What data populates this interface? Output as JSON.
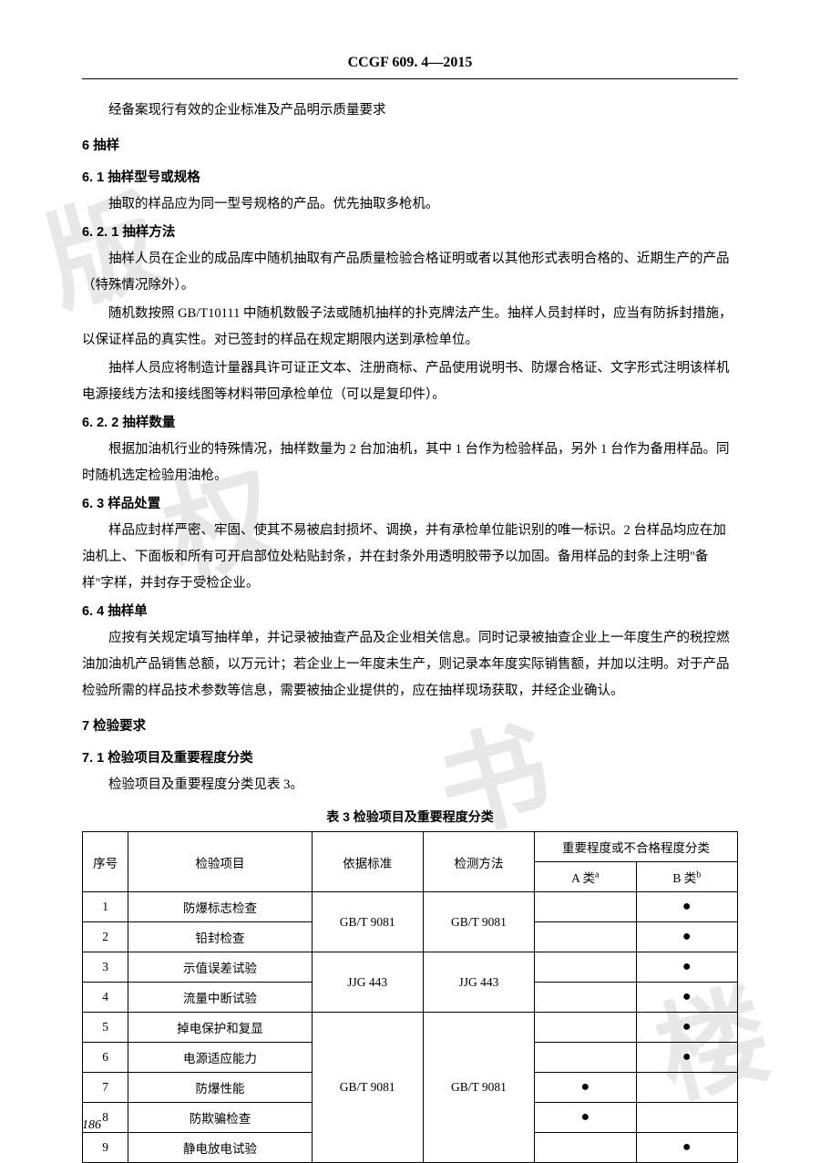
{
  "header": "CCGF 609. 4—2015",
  "intro_line": "经备案现行有效的企业标准及产品明示质量要求",
  "sec6": {
    "title": "6  抽样",
    "s61": {
      "title": "6. 1  抽样型号或规格",
      "p1": "抽取的样品应为同一型号规格的产品。优先抽取多枪机。"
    },
    "s621": {
      "title": "6. 2. 1  抽样方法",
      "p1": "抽样人员在企业的成品库中随机抽取有产品质量检验合格证明或者以其他形式表明合格的、近期生产的产品（特殊情况除外）。",
      "p2": "随机数按照 GB/T10111 中随机数骰子法或随机抽样的扑克牌法产生。抽样人员封样时，应当有防拆封措施，以保证样品的真实性。对已签封的样品在规定期限内送到承检单位。",
      "p3": "抽样人员应将制造计量器具许可证正文本、注册商标、产品使用说明书、防爆合格证、文字形式注明该样机电源接线方法和接线图等材料带回承检单位（可以是复印件）。"
    },
    "s622": {
      "title": "6. 2. 2  抽样数量",
      "p1": "根据加油机行业的特殊情况，抽样数量为 2 台加油机，其中 1 台作为检验样品，另外 1 台作为备用样品。同时随机选定检验用油枪。"
    },
    "s63": {
      "title": "6. 3  样品处置",
      "p1": "样品应封样严密、牢固、使其不易被启封损坏、调换，并有承检单位能识别的唯一标识。2 台样品均应在加油机上、下面板和所有可开启部位处粘贴封条，并在封条外用透明胶带予以加固。备用样品的封条上注明\"备样\"字样，并封存于受检企业。"
    },
    "s64": {
      "title": "6. 4  抽样单",
      "p1": "应按有关规定填写抽样单，并记录被抽查产品及企业相关信息。同时记录被抽查企业上一年度生产的税控燃油加油机产品销售总额，以万元计；若企业上一年度未生产，则记录本年度实际销售额，并加以注明。对于产品检验所需的样品技术参数等信息，需要被抽企业提供的，应在抽样现场获取，并经企业确认。"
    }
  },
  "sec7": {
    "title": "7  检验要求",
    "s71": {
      "title": "7. 1  检验项目及重要程度分类",
      "p1": "检验项目及重要程度分类见表 3。"
    }
  },
  "table": {
    "caption": "表 3  检验项目及重要程度分类",
    "headers": {
      "seq": "序号",
      "item": "检验项目",
      "std": "依据标准",
      "method": "检测方法",
      "group": "重要程度或不合格程度分类",
      "classA": "A 类",
      "classA_sup": "a",
      "classB": "B 类",
      "classB_sup": "b"
    },
    "rows": [
      {
        "seq": "1",
        "item": "防爆标志检查",
        "std": "GB/T 9081",
        "method": "GB/T 9081",
        "a": "",
        "b": "●"
      },
      {
        "seq": "2",
        "item": "铅封检查",
        "std": "",
        "method": "",
        "a": "",
        "b": "●"
      },
      {
        "seq": "3",
        "item": "示值误差试验",
        "std": "JJG 443",
        "method": "JJG 443",
        "a": "",
        "b": "●"
      },
      {
        "seq": "4",
        "item": "流量中断试验",
        "std": "",
        "method": "",
        "a": "",
        "b": "●"
      },
      {
        "seq": "5",
        "item": "掉电保护和复显",
        "std": "GB/T 9081",
        "method": "GB/T 9081",
        "a": "",
        "b": "●"
      },
      {
        "seq": "6",
        "item": "电源适应能力",
        "std": "",
        "method": "",
        "a": "",
        "b": "●"
      },
      {
        "seq": "7",
        "item": "防爆性能",
        "std": "",
        "method": "",
        "a": "●",
        "b": ""
      },
      {
        "seq": "8",
        "item": "防欺骗检查",
        "std": "",
        "method": "",
        "a": "●",
        "b": ""
      },
      {
        "seq": "9",
        "item": "静电放电试验",
        "std": "",
        "method": "",
        "a": "",
        "b": "●"
      }
    ]
  },
  "page_num": "186"
}
